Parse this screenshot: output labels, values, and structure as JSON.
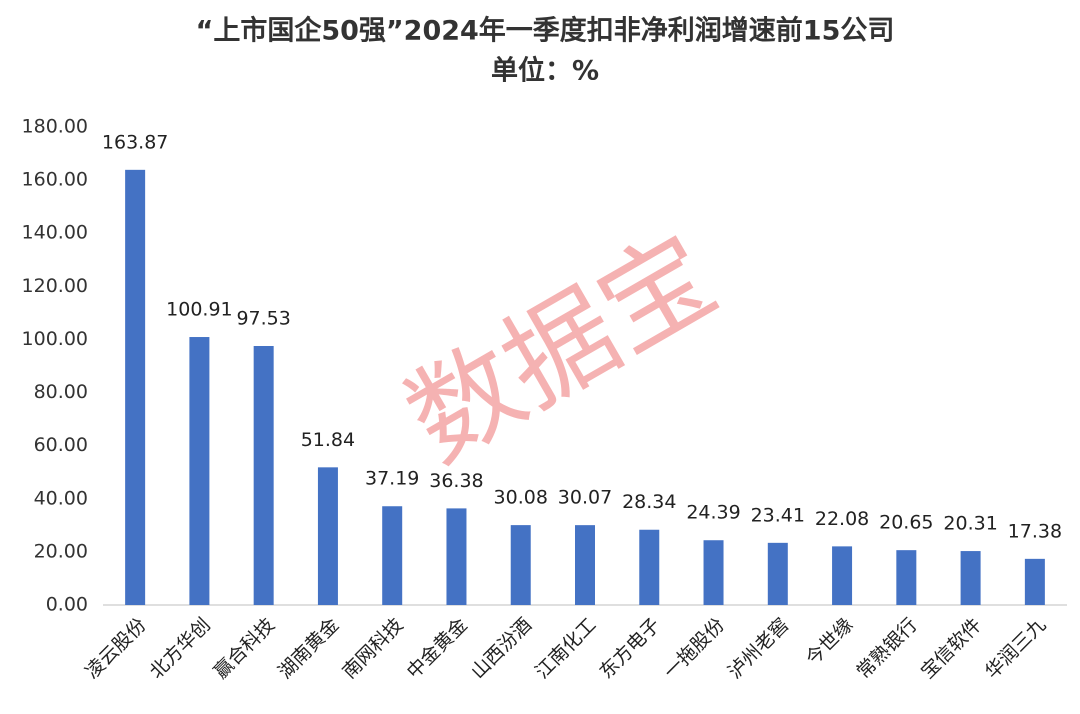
{
  "chart_data": {
    "type": "bar",
    "title": "“上市国企50强”2024年一季度扣非净利润增速前15公司",
    "subtitle": "单位：%",
    "watermark": "数据宝",
    "categories": [
      "凌云股份",
      "北方华创",
      "赢合科技",
      "湖南黄金",
      "南网科技",
      "中金黄金",
      "山西汾酒",
      "江南化工",
      "东方电子",
      "一拖股份",
      "泸州老窖",
      "今世缘",
      "常熟银行",
      "宝信软件",
      "华润三九"
    ],
    "values": [
      163.87,
      100.91,
      97.53,
      51.84,
      37.19,
      36.38,
      30.08,
      30.07,
      28.34,
      24.39,
      23.41,
      22.08,
      20.65,
      20.31,
      17.38
    ],
    "color": "#4472c4",
    "ylim": [
      0,
      180
    ],
    "yticks": [
      {
        "value": 0,
        "label": "0.00"
      },
      {
        "value": 20,
        "label": "20.00"
      },
      {
        "value": 40,
        "label": "40.00"
      },
      {
        "value": 60,
        "label": "60.00"
      },
      {
        "value": 80,
        "label": "80.00"
      },
      {
        "value": 100,
        "label": "100.00"
      },
      {
        "value": 120,
        "label": "120.00"
      },
      {
        "value": 140,
        "label": "140.00"
      },
      {
        "value": 160,
        "label": "160.00"
      },
      {
        "value": 180,
        "label": "180.00"
      }
    ],
    "grid": false
  }
}
